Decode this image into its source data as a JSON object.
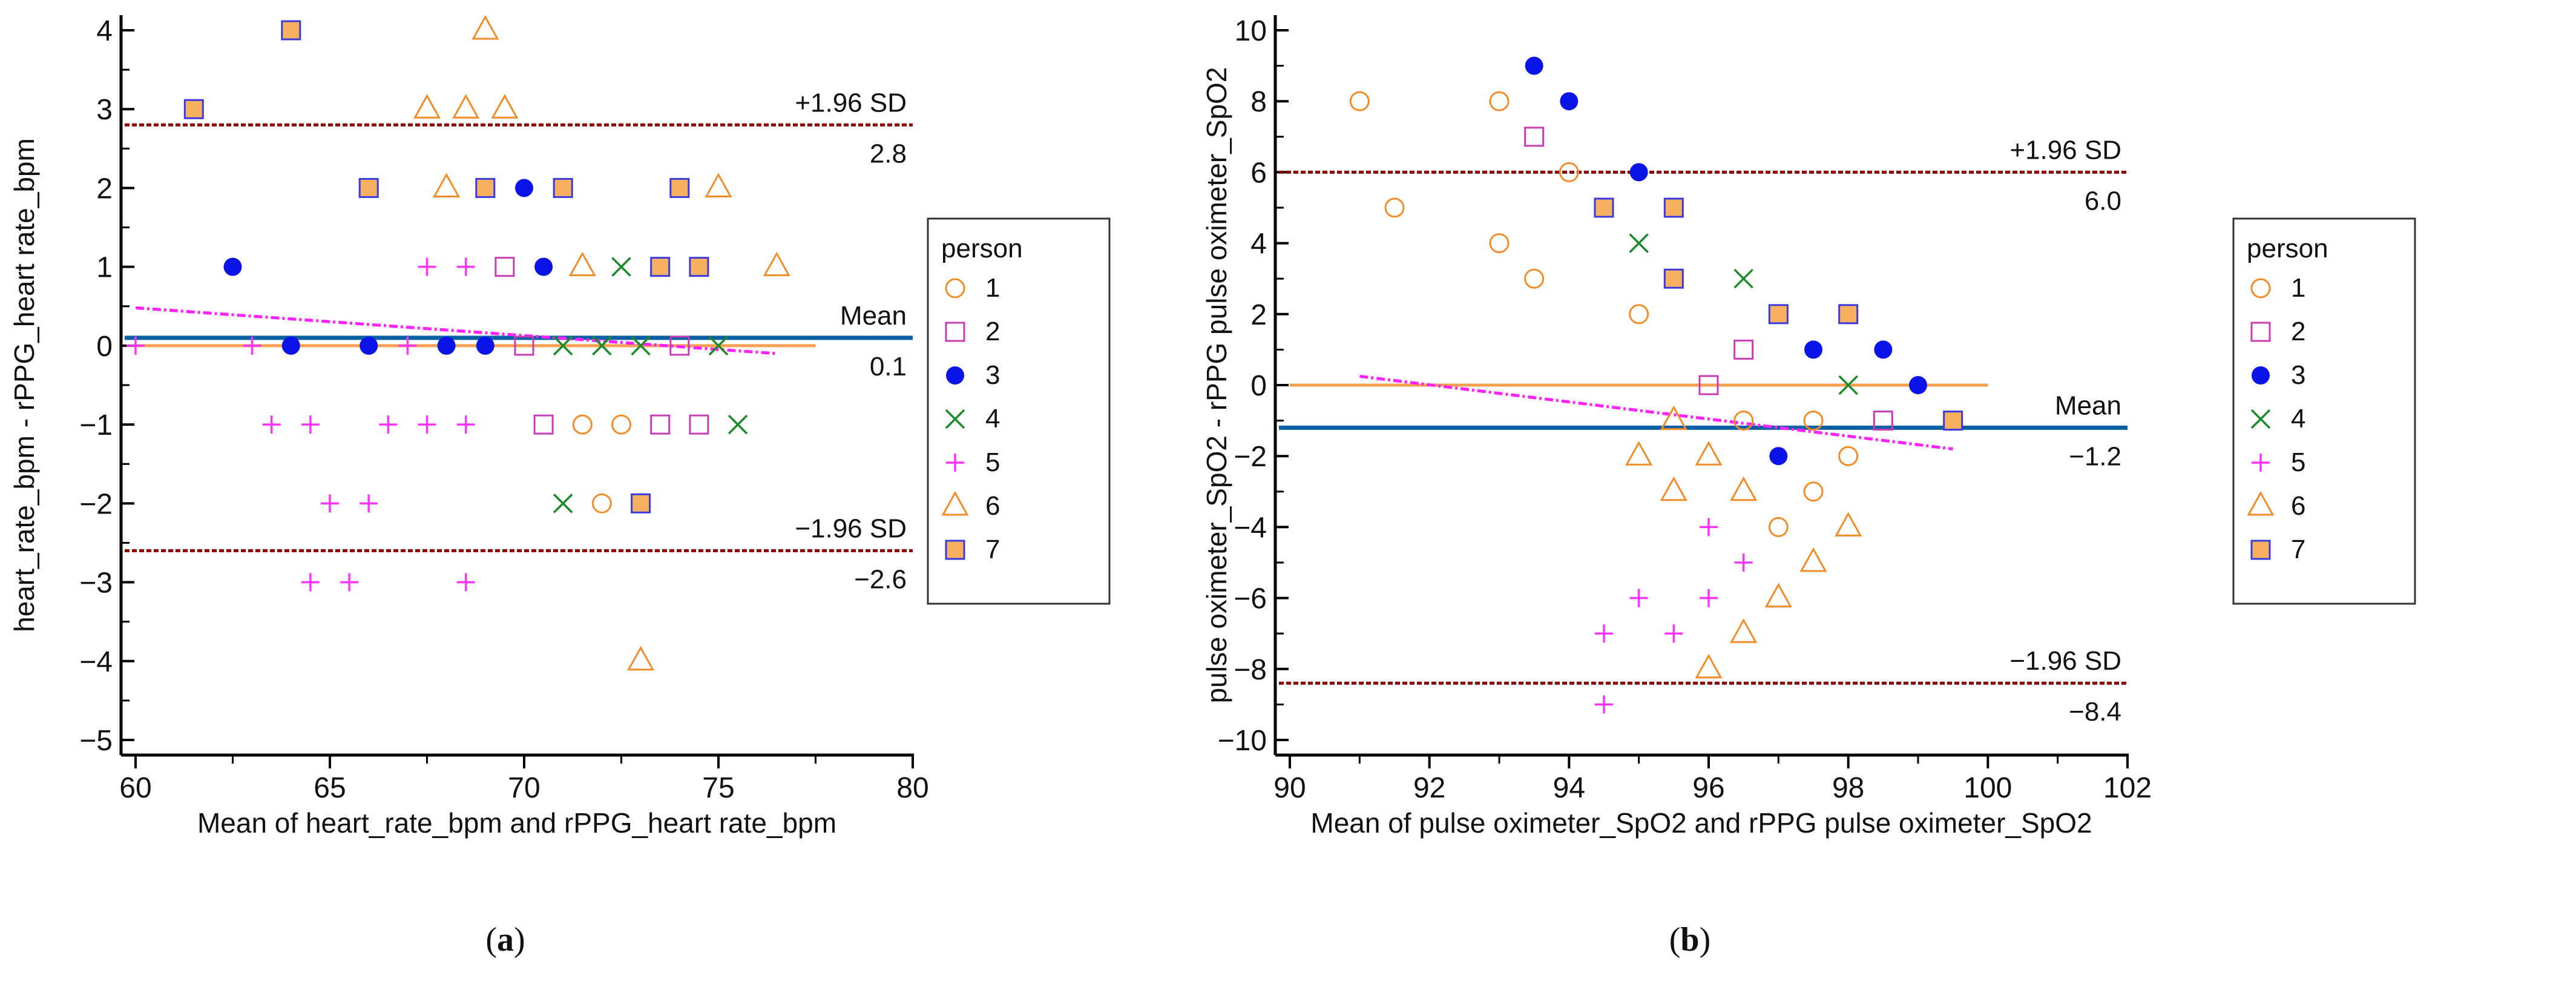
{
  "chart_data": [
    {
      "type": "scatter",
      "caption": "(a)",
      "caption_letter": "a",
      "xlabel": "Mean of heart_rate_bpm and rPPG_heart rate_bpm",
      "ylabel": "heart_rate_bpm - rPPG_heart rate_bpm",
      "xlim": [
        60,
        80
      ],
      "ylim": [
        -5,
        4
      ],
      "xticks": [
        60,
        65,
        70,
        75,
        80
      ],
      "yticks": [
        4,
        3,
        2,
        1,
        0,
        -1,
        -2,
        -3,
        -4,
        -5
      ],
      "ytick_labels": [
        "4",
        "3",
        "2",
        "1",
        "0",
        "−1",
        "−2",
        "−3",
        "−4",
        "−5"
      ],
      "lines": {
        "upper": {
          "value": 2.8,
          "label": "+1.96 SD",
          "value_label": "2.8"
        },
        "mean": {
          "value": 0.1,
          "label": "Mean",
          "value_label": "0.1"
        },
        "lower": {
          "value": -2.6,
          "label": "−1.96 SD",
          "value_label": "-2.6",
          "value_label_display": "−2.6"
        },
        "zero_line": {
          "x": [
            60,
            77.5
          ],
          "y": 0
        },
        "regression": {
          "x": [
            60,
            76.5
          ],
          "y": [
            0.48,
            -0.1
          ]
        }
      },
      "legend": {
        "title": "person",
        "placement": "right"
      },
      "series": [
        {
          "name": "1",
          "marker": "circle",
          "points": [
            [
              71.5,
              -1
            ],
            [
              72.5,
              -1
            ],
            [
              72,
              -2
            ]
          ]
        },
        {
          "name": "2",
          "marker": "open-square",
          "points": [
            [
              69.5,
              1
            ],
            [
              70,
              0
            ],
            [
              74,
              0
            ],
            [
              70.5,
              -1
            ],
            [
              73.5,
              -1
            ],
            [
              74.5,
              -1
            ]
          ]
        },
        {
          "name": "3",
          "marker": "dot",
          "points": [
            [
              62.5,
              1
            ],
            [
              70.5,
              1
            ],
            [
              70,
              2
            ],
            [
              64,
              0
            ],
            [
              66,
              0
            ],
            [
              68,
              0
            ],
            [
              69,
              0
            ]
          ]
        },
        {
          "name": "4",
          "marker": "x",
          "points": [
            [
              72.5,
              1
            ],
            [
              71,
              0
            ],
            [
              72,
              0
            ],
            [
              73,
              0
            ],
            [
              75,
              0
            ],
            [
              71,
              -2
            ],
            [
              75.5,
              -1
            ]
          ]
        },
        {
          "name": "5",
          "marker": "plus",
          "points": [
            [
              60,
              0
            ],
            [
              63,
              0
            ],
            [
              67,
              0
            ],
            [
              67.5,
              1
            ],
            [
              68.5,
              1
            ],
            [
              63.5,
              -1
            ],
            [
              64.5,
              -1
            ],
            [
              66.5,
              -1
            ],
            [
              67.5,
              -1
            ],
            [
              68.5,
              -1
            ],
            [
              65,
              -2
            ],
            [
              66,
              -2
            ],
            [
              64.5,
              -3
            ],
            [
              65.5,
              -3
            ],
            [
              68.5,
              -3
            ]
          ]
        },
        {
          "name": "6",
          "marker": "triangle",
          "points": [
            [
              69,
              4
            ],
            [
              67.5,
              3
            ],
            [
              68.5,
              3
            ],
            [
              69.5,
              3
            ],
            [
              68,
              2
            ],
            [
              75,
              2
            ],
            [
              71.5,
              1
            ],
            [
              76.5,
              1
            ],
            [
              73,
              -4
            ]
          ]
        },
        {
          "name": "7",
          "marker": "filled-square",
          "points": [
            [
              61.5,
              3
            ],
            [
              64,
              4
            ],
            [
              66,
              2
            ],
            [
              69,
              2
            ],
            [
              71,
              2
            ],
            [
              74,
              2
            ],
            [
              73.5,
              1
            ],
            [
              74.5,
              1
            ],
            [
              73,
              -2
            ]
          ]
        }
      ]
    },
    {
      "type": "scatter",
      "caption": "(b)",
      "caption_letter": "b",
      "xlabel": "Mean of pulse oximeter_SpO2 and rPPG pulse oximeter_SpO2",
      "ylabel": "pulse oximeter_SpO2 - rPPG pulse oximeter_SpO2",
      "xlim": [
        90,
        102
      ],
      "ylim": [
        -10,
        10
      ],
      "xticks": [
        90,
        92,
        94,
        96,
        98,
        100,
        102
      ],
      "yticks": [
        10,
        8,
        6,
        4,
        2,
        0,
        -2,
        -4,
        -6,
        -8,
        -10
      ],
      "ytick_labels": [
        "10",
        "8",
        "6",
        "4",
        "2",
        "0",
        "−2",
        "−4",
        "−6",
        "−8",
        "−10"
      ],
      "lines": {
        "upper": {
          "value": 6.0,
          "label": "+1.96 SD",
          "value_label": "6.0"
        },
        "mean": {
          "value": -1.2,
          "label": "Mean",
          "value_label": "-1.2",
          "value_label_display": "−1.2"
        },
        "lower": {
          "value": -8.4,
          "label": "−1.96 SD",
          "value_label": "-8.4",
          "value_label_display": "−8.4"
        },
        "zero_line": {
          "x": [
            90,
            100
          ],
          "y": 0
        },
        "regression": {
          "x": [
            91,
            99.5
          ],
          "y": [
            0.25,
            -1.8
          ]
        }
      },
      "legend": {
        "title": "person",
        "placement": "right"
      },
      "series": [
        {
          "name": "1",
          "marker": "circle",
          "points": [
            [
              91,
              8
            ],
            [
              93,
              8
            ],
            [
              94,
              6
            ],
            [
              91.5,
              5
            ],
            [
              93,
              4
            ],
            [
              93.5,
              3
            ],
            [
              95,
              2
            ],
            [
              96.5,
              -1
            ],
            [
              97.5,
              -1
            ],
            [
              98,
              -2
            ],
            [
              97.5,
              -3
            ],
            [
              97,
              -4
            ]
          ]
        },
        {
          "name": "2",
          "marker": "open-square",
          "points": [
            [
              93.5,
              7
            ],
            [
              96.5,
              1
            ],
            [
              96,
              0
            ],
            [
              98.5,
              -1
            ]
          ]
        },
        {
          "name": "3",
          "marker": "dot",
          "points": [
            [
              93.5,
              9
            ],
            [
              94,
              8
            ],
            [
              95,
              6
            ],
            [
              97.5,
              1
            ],
            [
              98.5,
              1
            ],
            [
              99,
              0
            ],
            [
              97,
              -2
            ]
          ]
        },
        {
          "name": "4",
          "marker": "x",
          "points": [
            [
              95,
              4
            ],
            [
              96.5,
              3
            ],
            [
              98,
              0
            ]
          ]
        },
        {
          "name": "5",
          "marker": "plus",
          "points": [
            [
              96,
              -4
            ],
            [
              96.5,
              -5
            ],
            [
              95,
              -6
            ],
            [
              96,
              -6
            ],
            [
              94.5,
              -7
            ],
            [
              95.5,
              -7
            ],
            [
              94.5,
              -9
            ]
          ]
        },
        {
          "name": "6",
          "marker": "triangle",
          "points": [
            [
              95.5,
              -1
            ],
            [
              95,
              -2
            ],
            [
              96,
              -2
            ],
            [
              95.5,
              -3
            ],
            [
              96.5,
              -3
            ],
            [
              98,
              -4
            ],
            [
              97.5,
              -5
            ],
            [
              97,
              -6
            ],
            [
              96.5,
              -7
            ],
            [
              96,
              -8
            ]
          ]
        },
        {
          "name": "7",
          "marker": "filled-square",
          "points": [
            [
              94.5,
              5
            ],
            [
              95.5,
              5
            ],
            [
              95.5,
              3
            ],
            [
              97,
              2
            ],
            [
              98,
              2
            ],
            [
              99.5,
              -1
            ]
          ]
        }
      ]
    }
  ],
  "colors": {
    "circle": "#f28c28",
    "open-square": "#c83cb4",
    "dot": "#0a14e6",
    "x": "#1a8a2a",
    "plus": "#ff33ff",
    "triangle": "#f28c28",
    "filled-square-fill": "#f7b060",
    "filled-square-stroke": "#3a3ae0",
    "sd_line": "#8b0000",
    "mean_line": "#0b5fa5",
    "zero_line": "#f5a050",
    "regression": "#ff22ff"
  }
}
